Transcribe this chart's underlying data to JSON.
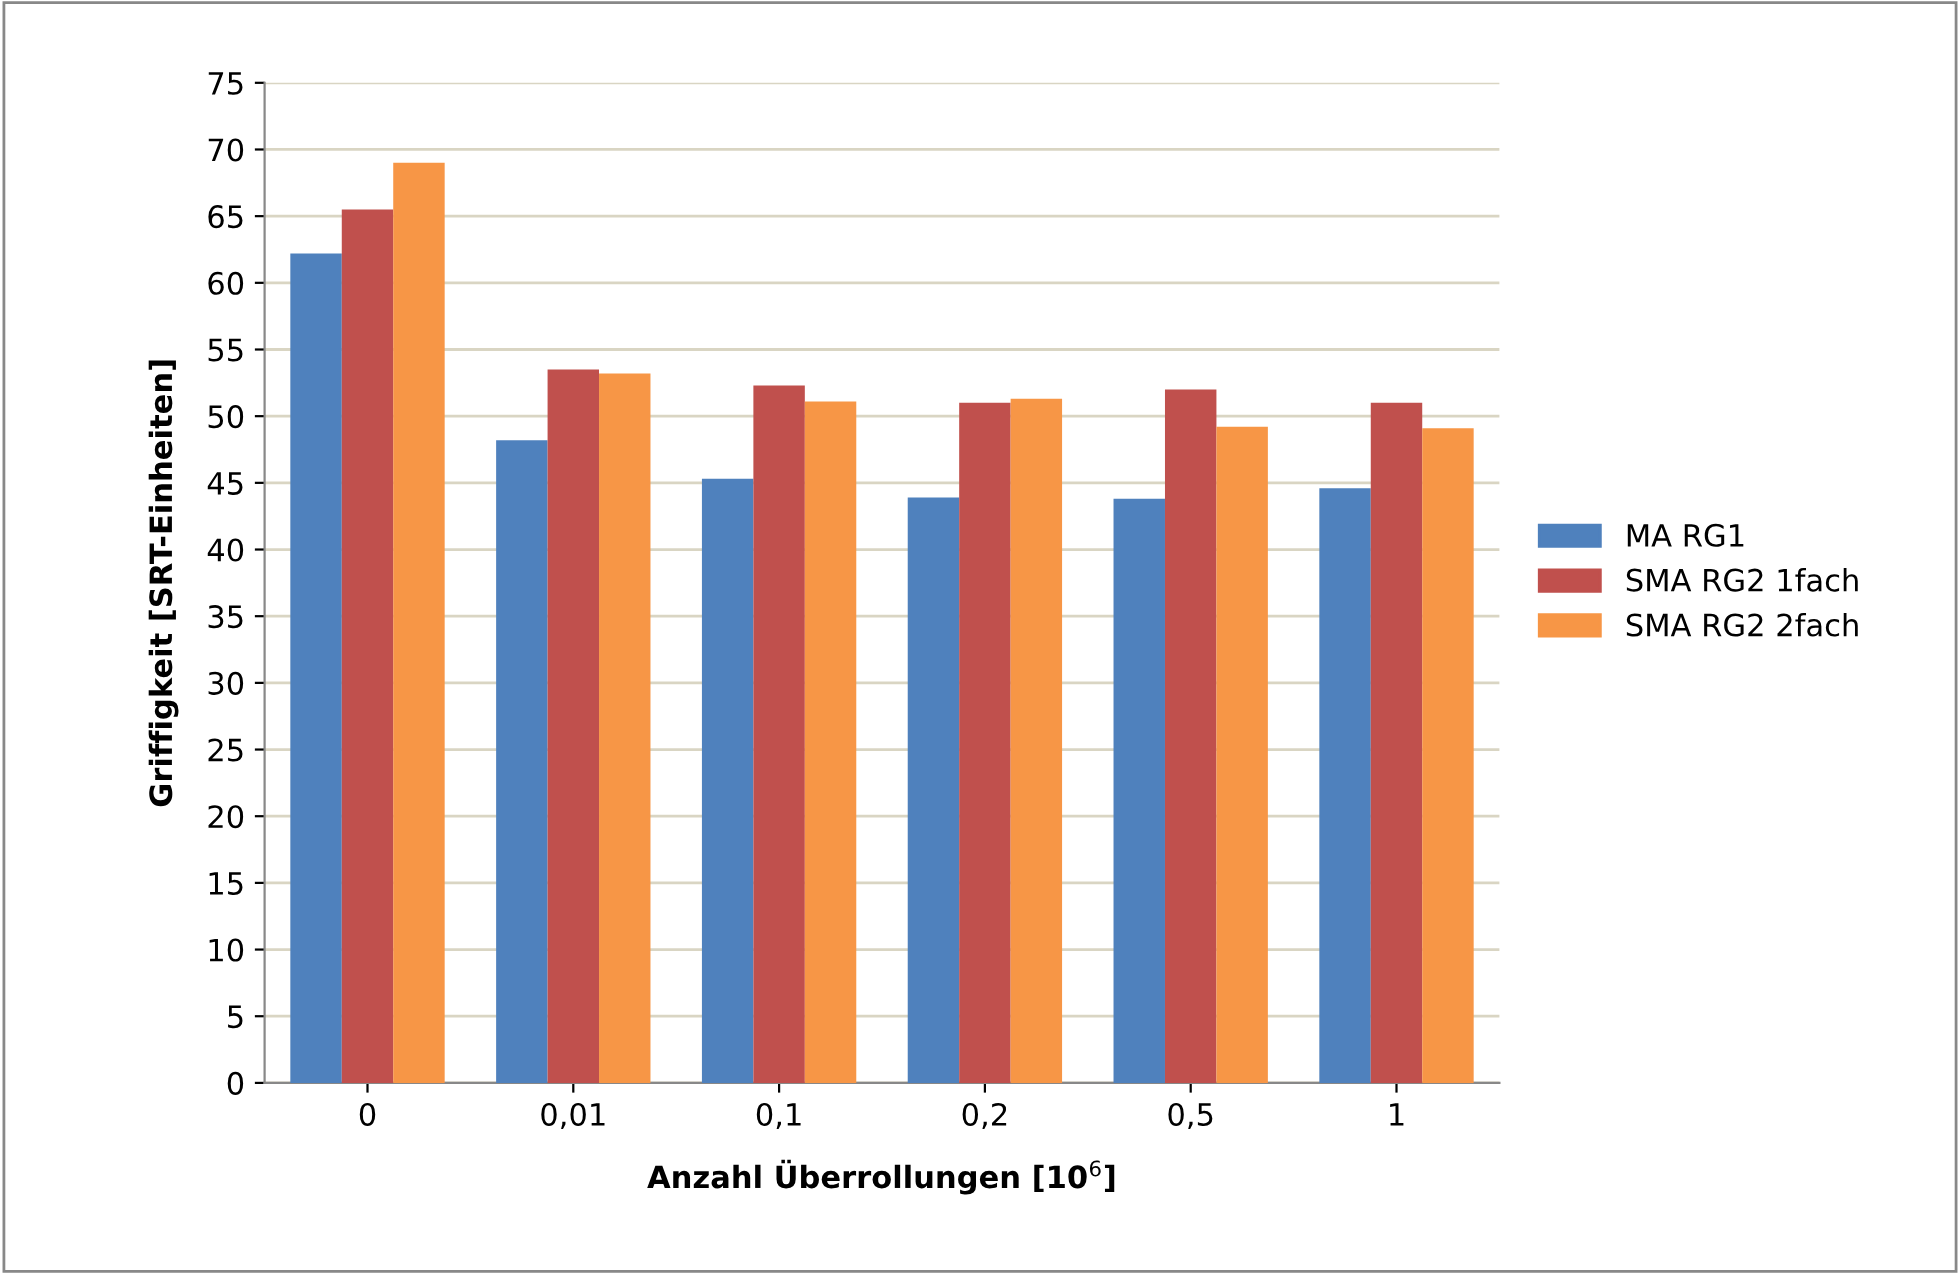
{
  "chart_data": {
    "type": "bar",
    "xlabel": "Anzahl Überrollungen [10$^{6}$]",
    "ylabel": "Griffigkeit [SRT-Einheiten]",
    "categories": [
      "0",
      "0,01",
      "0,1",
      "0,2",
      "0,5",
      "1"
    ],
    "series": [
      {
        "name": "MA RG1",
        "color": "#4f81bd",
        "values": [
          62.2,
          48.2,
          45.3,
          43.9,
          43.8,
          44.6
        ]
      },
      {
        "name": "SMA RG2 1fach",
        "color": "#c0504d",
        "values": [
          65.5,
          53.5,
          52.3,
          51.0,
          52.0,
          51.0
        ]
      },
      {
        "name": "SMA RG2 2fach",
        "color": "#f79646",
        "values": [
          69.0,
          53.2,
          51.1,
          51.3,
          49.2,
          49.1
        ]
      }
    ],
    "ylim": [
      0,
      75
    ],
    "yticks": [
      0,
      5,
      10,
      15,
      20,
      25,
      30,
      35,
      40,
      45,
      50,
      55,
      60,
      65,
      70,
      75
    ],
    "grid": "y",
    "legend": "right"
  }
}
